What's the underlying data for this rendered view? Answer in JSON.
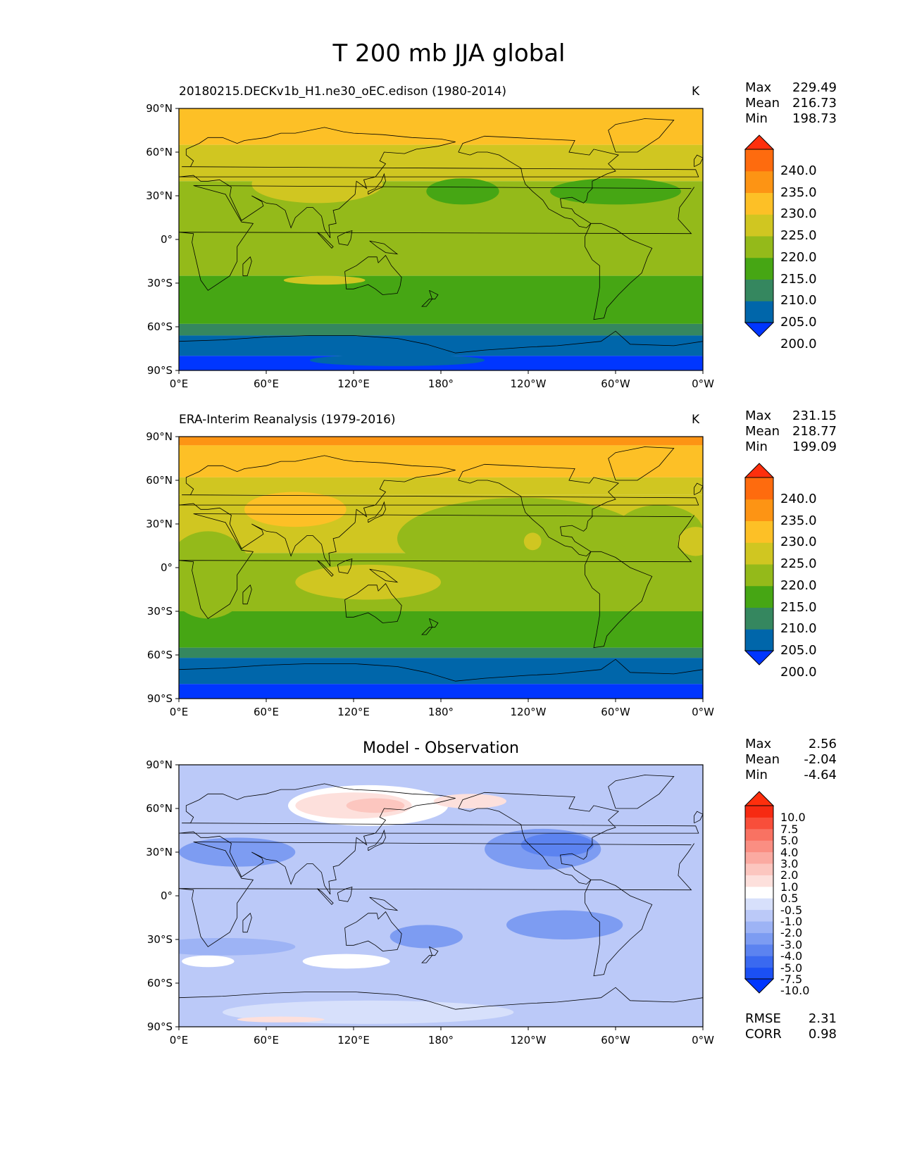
{
  "title": "T 200 mb JJA global",
  "panels": [
    {
      "id": "model",
      "title_left": "20180215.DECKv1b_H1.ne30_oEC.edison (1980-2014)",
      "title_right": "K",
      "stats": [
        {
          "label": "Max",
          "value": "229.49"
        },
        {
          "label": "Mean",
          "value": "216.73"
        },
        {
          "label": "Min",
          "value": "198.73"
        }
      ],
      "colorbar": {
        "labels": [
          "240.0",
          "235.0",
          "230.0",
          "225.0",
          "220.0",
          "215.0",
          "210.0",
          "205.0",
          "200.0"
        ],
        "colors": [
          "#0036ff",
          "#0066aa",
          "#35875f",
          "#46a614",
          "#94ba1a",
          "#d0c621",
          "#fdc026",
          "#fd9414",
          "#fe6b0e",
          "#fe2f0d"
        ]
      },
      "bands": [
        {
          "lat_top": 90,
          "lat_bot": 65,
          "color": "#fdc026"
        },
        {
          "lat_top": 65,
          "lat_bot": 40,
          "color": "#d0c621"
        },
        {
          "lat_top": 40,
          "lat_bot": -25,
          "color": "#94ba1a"
        },
        {
          "lat_top": -25,
          "lat_bot": -58,
          "color": "#46a614"
        },
        {
          "lat_top": -58,
          "lat_bot": -66,
          "color": "#35875f"
        },
        {
          "lat_top": -66,
          "lat_bot": -80,
          "color": "#0066aa"
        },
        {
          "lat_top": -80,
          "lat_bot": -90,
          "color": "#0036ff"
        }
      ],
      "blobs": [
        {
          "lon": 195,
          "lat": 33,
          "rlon": 25,
          "rlat": 9,
          "color": "#46a614"
        },
        {
          "lon": 300,
          "lat": 33,
          "rlon": 45,
          "rlat": 9,
          "color": "#46a614"
        },
        {
          "lon": 95,
          "lat": 38,
          "rlon": 45,
          "rlat": 13,
          "color": "#d0c621"
        },
        {
          "lon": 100,
          "lat": -28,
          "rlon": 28,
          "rlat": 3,
          "color": "#d0c621"
        },
        {
          "lon": 150,
          "lat": -83,
          "rlon": 60,
          "rlat": 4,
          "color": "#0066aa"
        }
      ]
    },
    {
      "id": "obs",
      "title_left": "ERA-Interim Reanalysis (1979-2016)",
      "title_right": "K",
      "stats": [
        {
          "label": "Max",
          "value": "231.15"
        },
        {
          "label": "Mean",
          "value": "218.77"
        },
        {
          "label": "Min",
          "value": "199.09"
        }
      ],
      "colorbar": {
        "labels": [
          "240.0",
          "235.0",
          "230.0",
          "225.0",
          "220.0",
          "215.0",
          "210.0",
          "205.0",
          "200.0"
        ],
        "colors": [
          "#0036ff",
          "#0066aa",
          "#35875f",
          "#46a614",
          "#94ba1a",
          "#d0c621",
          "#fdc026",
          "#fd9414",
          "#fe6b0e",
          "#fe2f0d"
        ]
      },
      "bands": [
        {
          "lat_top": 90,
          "lat_bot": 84,
          "color": "#fd9414"
        },
        {
          "lat_top": 84,
          "lat_bot": 62,
          "color": "#fdc026"
        },
        {
          "lat_top": 62,
          "lat_bot": 50,
          "color": "#d0c621"
        },
        {
          "lat_top": 50,
          "lat_bot": 10,
          "color": "#d0c621"
        },
        {
          "lat_top": 10,
          "lat_bot": -30,
          "color": "#94ba1a"
        },
        {
          "lat_top": -30,
          "lat_bot": -55,
          "color": "#46a614"
        },
        {
          "lat_top": -55,
          "lat_bot": -62,
          "color": "#35875f"
        },
        {
          "lat_top": -62,
          "lat_bot": -80,
          "color": "#0066aa"
        },
        {
          "lat_top": -80,
          "lat_bot": -90,
          "color": "#0036ff"
        }
      ],
      "blobs": [
        {
          "lon": 235,
          "lat": 20,
          "rlon": 85,
          "rlat": 28,
          "color": "#94ba1a"
        },
        {
          "lon": 330,
          "lat": 25,
          "rlon": 30,
          "rlat": 18,
          "color": "#94ba1a"
        },
        {
          "lon": 20,
          "lat": -5,
          "rlon": 30,
          "rlat": 30,
          "color": "#94ba1a"
        },
        {
          "lon": 80,
          "lat": 40,
          "rlon": 35,
          "rlat": 12,
          "color": "#fdc026"
        },
        {
          "lon": 130,
          "lat": -10,
          "rlon": 50,
          "rlat": 12,
          "color": "#d0c621"
        },
        {
          "lon": 243,
          "lat": 18,
          "rlon": 6,
          "rlat": 6,
          "color": "#d0c621"
        },
        {
          "lon": 355,
          "lat": 18,
          "rlon": 12,
          "rlat": 10,
          "color": "#d0c621"
        }
      ]
    },
    {
      "id": "diff",
      "title_center": "Model - Observation",
      "stats": [
        {
          "label": "Max",
          "value": "2.56"
        },
        {
          "label": "Mean",
          "value": "-2.04"
        },
        {
          "label": "Min",
          "value": "-4.64"
        }
      ],
      "colorbar": {
        "labels": [
          "10.0",
          "7.5",
          "5.0",
          "4.0",
          "3.0",
          "2.0",
          "1.0",
          "0.5",
          "-0.5",
          "-1.0",
          "-2.0",
          "-3.0",
          "-4.0",
          "-5.0",
          "-7.5",
          "-10.0"
        ],
        "colors": [
          "#0036ff",
          "#1b50f4",
          "#3a69f0",
          "#5c83f0",
          "#7d9cf2",
          "#9db3f5",
          "#bbc9f8",
          "#d7e0fb",
          "#ffffff",
          "#fde0dc",
          "#fcc6bf",
          "#fbaaa1",
          "#fa8e82",
          "#f97262",
          "#f84e3a",
          "#f62a12",
          "#fe2f0d"
        ]
      },
      "bands": [
        {
          "lat_top": 90,
          "lat_bot": -90,
          "color": "#bbc9f8"
        }
      ],
      "blobs": [
        {
          "lon": 130,
          "lat": 62,
          "rlon": 55,
          "rlat": 14,
          "color": "#ffffff"
        },
        {
          "lon": 200,
          "lat": 65,
          "rlon": 25,
          "rlat": 5,
          "color": "#fde0dc"
        },
        {
          "lon": 120,
          "lat": 62,
          "rlon": 40,
          "rlat": 9,
          "color": "#fde0dc"
        },
        {
          "lon": 135,
          "lat": 62,
          "rlon": 20,
          "rlat": 5,
          "color": "#fcc6bf"
        },
        {
          "lon": 40,
          "lat": 30,
          "rlon": 40,
          "rlat": 10,
          "color": "#7d9cf2"
        },
        {
          "lon": 250,
          "lat": 32,
          "rlon": 40,
          "rlat": 14,
          "color": "#7d9cf2"
        },
        {
          "lon": 260,
          "lat": 35,
          "rlon": 25,
          "rlat": 8,
          "color": "#5c83f0"
        },
        {
          "lon": 265,
          "lat": -20,
          "rlon": 40,
          "rlat": 10,
          "color": "#7d9cf2"
        },
        {
          "lon": 170,
          "lat": -28,
          "rlon": 25,
          "rlat": 8,
          "color": "#7d9cf2"
        },
        {
          "lon": 30,
          "lat": -35,
          "rlon": 50,
          "rlat": 6,
          "color": "#9db3f5"
        },
        {
          "lon": 20,
          "lat": -45,
          "rlon": 18,
          "rlat": 4,
          "color": "#ffffff"
        },
        {
          "lon": 115,
          "lat": -45,
          "rlon": 30,
          "rlat": 5,
          "color": "#ffffff"
        },
        {
          "lon": 130,
          "lat": -80,
          "rlon": 100,
          "rlat": 8,
          "color": "#d7e0fb"
        },
        {
          "lon": 70,
          "lat": -85,
          "rlon": 30,
          "rlat": 2,
          "color": "#fde0dc"
        }
      ]
    }
  ],
  "axes": {
    "y_ticks": [
      "90°N",
      "60°N",
      "30°N",
      "0°",
      "30°S",
      "60°S",
      "90°S"
    ],
    "x_ticks": [
      "0°E",
      "60°E",
      "120°E",
      "180°",
      "120°W",
      "60°W",
      "0°W"
    ]
  },
  "error_stats": [
    {
      "label": "RMSE",
      "value": "2.31"
    },
    {
      "label": "CORR",
      "value": "0.98"
    }
  ]
}
